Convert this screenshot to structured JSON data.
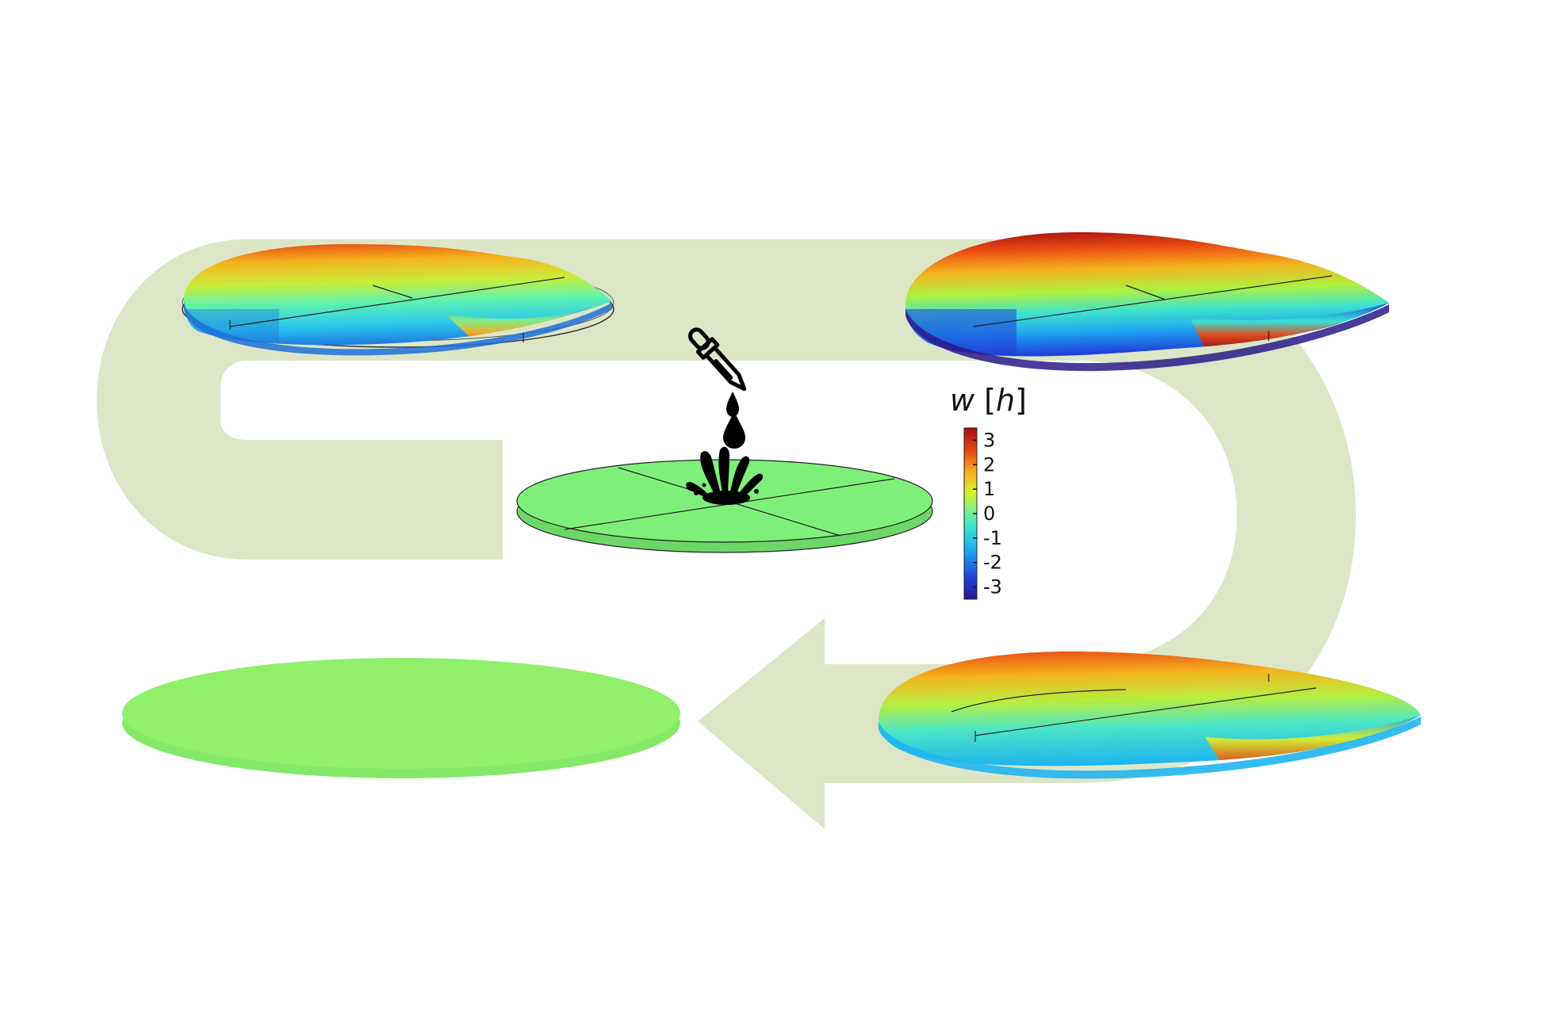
{
  "figure": {
    "background_color": "#ffffff",
    "cycle_arrow_color": "#dce6c6",
    "flat_plate_color": "#7ef07a",
    "final_plate_color": "#90f06a",
    "icon_color": "#000000",
    "icons": [
      "pipette-icon",
      "droplet-icon",
      "splash-icon"
    ]
  },
  "colorbar": {
    "variable": "w",
    "open_bracket": " [",
    "unit": "h",
    "close_bracket": "]",
    "ticks": [
      "3",
      "2",
      "1",
      "0",
      "-1",
      "-2",
      "-3"
    ],
    "range": [
      -3.5,
      3.5
    ],
    "colormap": [
      "#2a1a8a",
      "#1f3ed8",
      "#1fa6f0",
      "#35e6d6",
      "#7ff08a",
      "#d6ef2e",
      "#f5b21c",
      "#e94a14",
      "#a50f0f"
    ]
  },
  "stages": [
    {
      "id": "stage-1",
      "description_visible": false
    },
    {
      "id": "stage-2",
      "description_visible": false
    },
    {
      "id": "stage-3",
      "description_visible": false
    },
    {
      "id": "stage-4",
      "description_visible": false
    }
  ]
}
